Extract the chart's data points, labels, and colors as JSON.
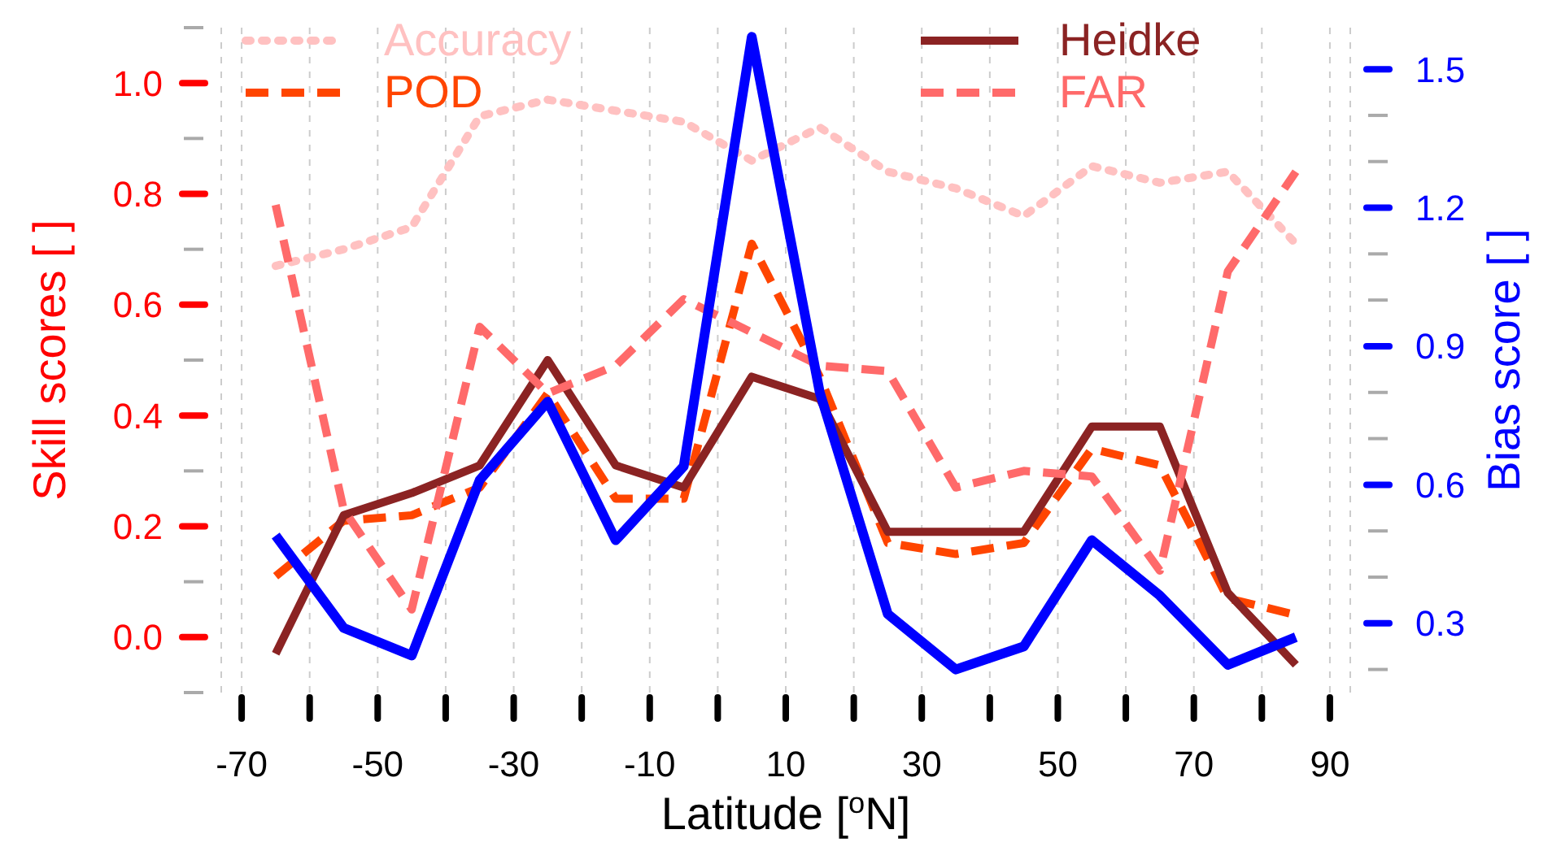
{
  "chart_data": {
    "type": "line",
    "xlabel": "Latitude [$^{o}$N]",
    "ylabel": "Skill scores [ ]",
    "y2label": "Bias score [ ]",
    "x": [
      -65,
      -55,
      -45,
      -35,
      -25,
      -15,
      -5,
      5,
      15,
      25,
      35,
      45,
      55,
      65,
      75,
      85
    ],
    "series": [
      {
        "name": "Accuracy",
        "color": "#ffc1c1",
        "line_style": "dotted",
        "values": [
          0.67,
          0.7,
          0.74,
          0.94,
          0.97,
          0.95,
          0.93,
          0.86,
          0.92,
          0.84,
          0.81,
          0.76,
          0.85,
          0.82,
          0.84,
          0.71
        ]
      },
      {
        "name": "POD",
        "color": "#ff4500",
        "line_style": "dashed",
        "values": [
          0.11,
          0.21,
          0.22,
          0.27,
          0.44,
          0.25,
          0.25,
          0.71,
          0.47,
          0.17,
          0.15,
          0.17,
          0.34,
          0.31,
          0.07,
          0.04
        ]
      },
      {
        "name": "Heidke",
        "color": "#8b2323",
        "line_style": "solid",
        "values": [
          -0.03,
          0.22,
          0.26,
          0.31,
          0.5,
          0.31,
          0.27,
          0.47,
          0.43,
          0.19,
          0.19,
          0.19,
          0.38,
          0.38,
          0.08,
          -0.05
        ]
      },
      {
        "name": "FAR",
        "color": "#ff6a6a",
        "line_style": "dashed",
        "values": [
          0.78,
          0.23,
          0.05,
          0.56,
          0.44,
          0.49,
          0.61,
          0.55,
          0.49,
          0.48,
          0.27,
          0.3,
          0.29,
          0.12,
          0.66,
          0.84
        ]
      },
      {
        "color": "#0000ff",
        "line_style": "solid",
        "axis": "y2",
        "values": [
          0.49,
          0.29,
          0.23,
          0.61,
          0.78,
          0.48,
          0.64,
          1.57,
          0.8,
          0.32,
          0.2,
          0.25,
          0.48,
          0.36,
          0.21,
          0.27
        ]
      }
    ],
    "xlim": [
      -73,
      93
    ],
    "xticks": [
      -70,
      {
        "value": -60,
        "label": null
      },
      -50,
      {
        "value": -40,
        "label": null
      },
      -30,
      {
        "value": -20,
        "label": null
      },
      -10,
      {
        "value": 0,
        "label": null
      },
      10,
      {
        "value": 20,
        "label": null
      },
      30,
      {
        "value": 40,
        "label": null
      },
      50,
      {
        "value": 60,
        "label": null
      },
      70,
      {
        "value": 80,
        "label": null
      },
      90
    ],
    "ylim": [
      -0.1,
      1.1
    ],
    "yticks": [
      {
        "value": -0.1,
        "label": null
      },
      "0.0",
      {
        "value": 0.1,
        "label": null
      },
      {
        "value": 0.2,
        "label": "0.2"
      },
      {
        "value": 0.3,
        "label": null
      },
      {
        "value": 0.4,
        "label": "0.4"
      },
      {
        "value": 0.5,
        "label": null
      },
      {
        "value": 0.6,
        "label": "0.6"
      },
      {
        "value": 0.7,
        "label": null
      },
      {
        "value": 0.8,
        "label": "0.8"
      },
      {
        "value": 0.9,
        "label": null
      },
      {
        "value": 1.0,
        "label": "1.0"
      },
      {
        "value": 1.1,
        "label": null
      }
    ],
    "y2lim": [
      0.15,
      1.59
    ],
    "y2ticks": [
      {
        "value": 0.2,
        "label": null
      },
      0.3,
      {
        "value": 0.4,
        "label": null
      },
      {
        "value": 0.5,
        "label": null
      },
      0.6,
      {
        "value": 0.7,
        "label": null
      },
      {
        "value": 0.8,
        "label": null
      },
      0.9,
      {
        "value": 1.0,
        "label": null
      },
      {
        "value": 1.1,
        "label": null
      },
      1.2,
      {
        "value": 1.3,
        "label": null
      },
      {
        "value": 1.4,
        "label": null
      },
      1.5
    ],
    "grid": "x",
    "legend": "top"
  }
}
